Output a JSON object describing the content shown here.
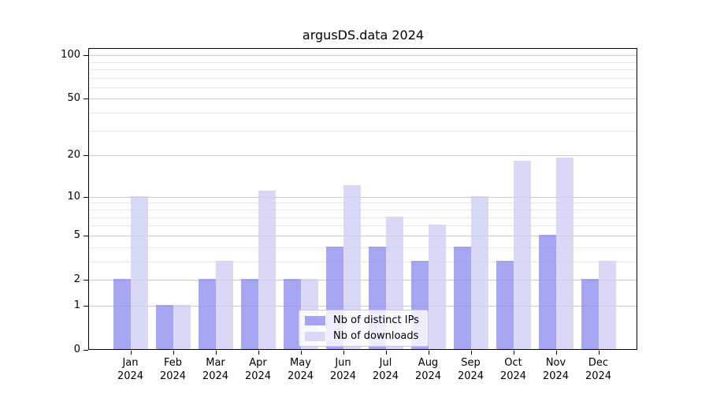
{
  "chart_data": {
    "type": "bar",
    "title": "argusDS.data 2024",
    "year_label": "2024",
    "categories": [
      "Jan",
      "Feb",
      "Mar",
      "Apr",
      "May",
      "Jun",
      "Jul",
      "Aug",
      "Sep",
      "Oct",
      "Nov",
      "Dec"
    ],
    "series": [
      {
        "name": "Nb of distinct IPs",
        "color": "#8888ee",
        "alpha": 0.75,
        "values": [
          2,
          1,
          2,
          2,
          2,
          4,
          4,
          3,
          4,
          3,
          5,
          2
        ]
      },
      {
        "name": "Nb of downloads",
        "color": "#ccccf4",
        "alpha": 0.75,
        "values": [
          10,
          1,
          3,
          11,
          2,
          12,
          7,
          6,
          10,
          18,
          19,
          3
        ]
      }
    ],
    "yscale": "log1p",
    "ylim": [
      0,
      112
    ],
    "yticks": [
      0,
      1,
      2,
      5,
      10,
      20,
      50,
      100
    ],
    "yticks_minor": [
      3,
      4,
      6,
      7,
      8,
      9,
      30,
      40,
      60,
      70,
      80,
      90
    ],
    "grid": {
      "axis": "y",
      "major_color": "#cccccc",
      "minor_color": "#e7e7e7"
    },
    "legend_position": "lower-center",
    "xlabel": "",
    "ylabel": ""
  }
}
